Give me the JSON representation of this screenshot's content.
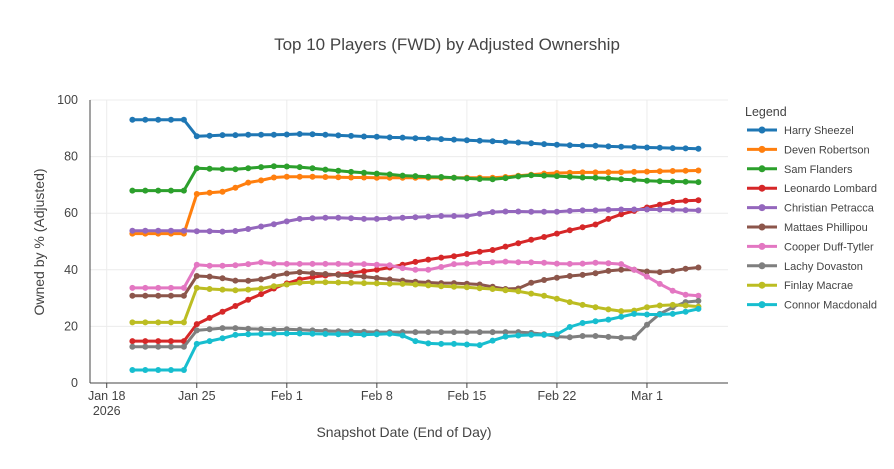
{
  "chart_data": {
    "type": "line",
    "title": "Top 10 Players (FWD) by Adjusted Ownership",
    "xlabel": "Snapshot Date (End of Day)",
    "ylabel": "Owned by % (Adjusted)",
    "ylim": [
      0,
      100
    ],
    "yticks": [
      0,
      20,
      40,
      60,
      80,
      100
    ],
    "xlim_days": [
      -1.3,
      48.3
    ],
    "xticks": [
      {
        "day": 0,
        "label": "Jan 18",
        "sublabel": "2026"
      },
      {
        "day": 7,
        "label": "Jan 25",
        "sublabel": ""
      },
      {
        "day": 14,
        "label": "Feb 1",
        "sublabel": ""
      },
      {
        "day": 21,
        "label": "Feb 8",
        "sublabel": ""
      },
      {
        "day": 28,
        "label": "Feb 15",
        "sublabel": ""
      },
      {
        "day": 35,
        "label": "Feb 22",
        "sublabel": ""
      },
      {
        "day": 42,
        "label": "Mar 1",
        "sublabel": ""
      }
    ],
    "x_days": [
      2,
      3,
      4,
      5,
      6,
      7,
      8,
      9,
      10,
      11,
      12,
      13,
      14,
      15,
      16,
      17,
      18,
      19,
      20,
      21,
      22,
      23,
      24,
      25,
      26,
      27,
      28,
      29,
      30,
      31,
      32,
      33,
      34,
      35,
      36,
      37,
      38,
      39,
      40,
      41,
      42,
      43,
      44,
      45,
      46
    ],
    "legend_title": "Legend",
    "series": [
      {
        "name": "Harry Sheezel",
        "color": "#1f77b4",
        "values": [
          93,
          93,
          93,
          93,
          93,
          87.2,
          87.4,
          87.6,
          87.6,
          87.7,
          87.7,
          87.7,
          87.8,
          88,
          87.9,
          87.7,
          87.5,
          87.3,
          87.1,
          87,
          86.8,
          86.7,
          86.5,
          86.4,
          86.2,
          86,
          85.8,
          85.6,
          85.4,
          85.2,
          85,
          84.7,
          84.4,
          84.2,
          84,
          83.9,
          83.8,
          83.6,
          83.5,
          83.4,
          83.2,
          83.1,
          83,
          82.9,
          82.8
        ]
      },
      {
        "name": "Deven Robertson",
        "color": "#ff7f0e",
        "values": [
          52.8,
          52.8,
          52.8,
          52.8,
          52.8,
          66.8,
          67.2,
          67.6,
          69,
          70.8,
          71.6,
          72.6,
          72.9,
          72.9,
          72.9,
          72.8,
          72.7,
          72.6,
          72.6,
          72.5,
          72.5,
          72.5,
          72.5,
          72.5,
          72.5,
          72.5,
          72.5,
          72.5,
          72.5,
          72.8,
          73.2,
          73.6,
          74,
          74.2,
          74.3,
          74.4,
          74.4,
          74.5,
          74.5,
          74.6,
          74.7,
          74.8,
          74.9,
          75,
          75.1
        ]
      },
      {
        "name": "Sam Flanders",
        "color": "#2ca02c",
        "values": [
          68,
          68,
          68,
          68,
          68,
          75.9,
          75.7,
          75.6,
          75.5,
          75.9,
          76.3,
          76.6,
          76.5,
          76.3,
          75.9,
          75.4,
          75,
          74.6,
          74.3,
          74,
          73.7,
          73.3,
          73.1,
          72.9,
          72.8,
          72.5,
          72.3,
          72.1,
          72,
          72.4,
          73,
          73.4,
          73.3,
          73.1,
          72.9,
          72.6,
          72.5,
          72.3,
          72,
          71.8,
          71.5,
          71.3,
          71.2,
          71.1,
          71
        ]
      },
      {
        "name": "Leonardo Lombard",
        "color": "#d62728",
        "values": [
          14.8,
          14.8,
          14.8,
          14.8,
          14.8,
          20.8,
          23,
          25.2,
          27.2,
          29.4,
          31.4,
          33.4,
          35.2,
          36.6,
          37.4,
          38,
          38.4,
          38.8,
          39.5,
          40,
          40.8,
          41.8,
          42.8,
          43.6,
          44.3,
          44.8,
          45.6,
          46.4,
          47,
          48.2,
          49.4,
          50.6,
          51.6,
          52.8,
          54,
          55,
          56,
          58,
          59.6,
          60.8,
          62,
          63,
          64,
          64.4,
          64.6
        ]
      },
      {
        "name": "Christian Petracca",
        "color": "#9467bd",
        "values": [
          53.8,
          53.8,
          53.8,
          53.8,
          53.8,
          53.6,
          53.6,
          53.5,
          53.7,
          54.4,
          55.3,
          56.1,
          57.1,
          58,
          58.2,
          58.4,
          58.4,
          58.2,
          58,
          58,
          58.2,
          58.4,
          58.6,
          58.8,
          59,
          59,
          59,
          59.8,
          60.4,
          60.6,
          60.6,
          60.5,
          60.5,
          60.5,
          60.8,
          61,
          61,
          61.2,
          61.3,
          61.3,
          61.3,
          61.3,
          61.2,
          61.1,
          61
        ]
      },
      {
        "name": "Mattaes Phillipou",
        "color": "#8c564b",
        "values": [
          30.8,
          30.8,
          30.8,
          30.8,
          30.8,
          37.8,
          37.6,
          37,
          36.2,
          36.1,
          36.6,
          37.8,
          38.7,
          39.1,
          38.8,
          38.5,
          38.2,
          37.9,
          37.6,
          37.1,
          36.6,
          36.2,
          35.8,
          35.5,
          35.3,
          35.3,
          35.1,
          34.8,
          34,
          33.2,
          33.4,
          35.4,
          36.4,
          37.2,
          37.8,
          38.2,
          38.8,
          39.6,
          40,
          40,
          39.4,
          39.2,
          39.6,
          40.4,
          40.8
        ]
      },
      {
        "name": "Cooper Duff-Tytler",
        "color": "#e377c2",
        "values": [
          33.6,
          33.6,
          33.6,
          33.6,
          33.6,
          41.8,
          41.4,
          41.4,
          41.6,
          42,
          42.6,
          42.2,
          42.1,
          42.1,
          42.1,
          42.1,
          42.1,
          42,
          42,
          41.8,
          41.6,
          40.6,
          40,
          40,
          41,
          42,
          42.2,
          42.5,
          42.7,
          42.9,
          42.7,
          42.6,
          42.5,
          42.2,
          42.1,
          42.2,
          42.5,
          42.3,
          42,
          40,
          37.6,
          35,
          32.6,
          31.2,
          30.8
        ]
      },
      {
        "name": "Lachy Dovaston",
        "color": "#7f7f7f",
        "values": [
          12.8,
          12.8,
          12.8,
          12.8,
          12.8,
          18.6,
          19,
          19.4,
          19.4,
          19.2,
          19,
          18.8,
          19,
          18.8,
          18.6,
          18.4,
          18.3,
          18.2,
          18.1,
          18,
          18,
          18,
          18,
          18,
          18,
          18,
          18,
          18,
          18,
          18,
          18,
          17.7,
          17.2,
          16.4,
          16.2,
          16.6,
          16.6,
          16.3,
          16,
          16,
          20.6,
          24.4,
          26.8,
          28.6,
          29
        ]
      },
      {
        "name": "Finlay Macrae",
        "color": "#bcbd22",
        "values": [
          21.4,
          21.4,
          21.4,
          21.4,
          21.4,
          33.6,
          33.2,
          33,
          32.8,
          33,
          33.4,
          34.2,
          34.8,
          35.4,
          35.6,
          35.6,
          35.5,
          35.4,
          35.3,
          35.2,
          35.1,
          35,
          34.8,
          34.5,
          34.2,
          34,
          33.8,
          33.5,
          33.2,
          32.8,
          32.4,
          31.6,
          30.8,
          29.8,
          28.6,
          27.6,
          26.8,
          26,
          25.4,
          25.6,
          26.8,
          27.4,
          27.6,
          27.4,
          27
        ]
      },
      {
        "name": "Connor Macdonald",
        "color": "#17becf",
        "values": [
          4.6,
          4.6,
          4.6,
          4.6,
          4.6,
          13.8,
          14.8,
          15.8,
          17,
          17.2,
          17.3,
          17.4,
          17.5,
          17.5,
          17.4,
          17.3,
          17.2,
          17.2,
          17.1,
          17.2,
          17.4,
          16.8,
          14.8,
          14,
          13.8,
          13.8,
          13.6,
          13.4,
          15,
          16.4,
          16.8,
          17,
          17,
          17.2,
          19.8,
          21.2,
          21.8,
          22.4,
          23.4,
          24.4,
          24.2,
          24.2,
          24.4,
          25.2,
          26.2
        ]
      }
    ]
  }
}
